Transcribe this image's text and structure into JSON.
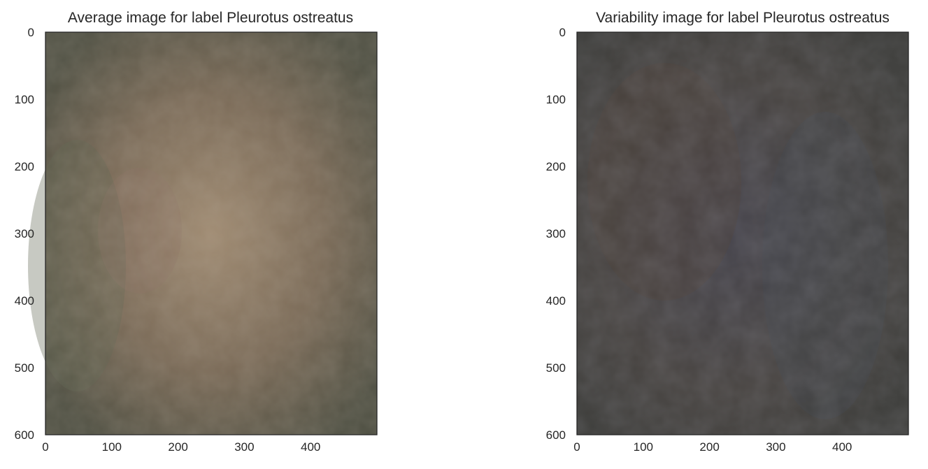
{
  "chart_data": [
    {
      "type": "heatmap",
      "title": "Average image for label Pleurotus ostreatus",
      "xlim": [
        0,
        500
      ],
      "ylim": [
        600,
        0
      ],
      "x_ticks": [
        0,
        100,
        200,
        300,
        400
      ],
      "y_ticks": [
        0,
        100,
        200,
        300,
        400,
        500,
        600
      ],
      "grid": false,
      "colors": {
        "center": "#a08b72",
        "mid": "#7a6a57",
        "edge": "#4e4f42",
        "accent_green": "#5e6350",
        "accent_rose": "#8a6e64"
      }
    },
    {
      "type": "heatmap",
      "title": "Variability image for label Pleurotus ostreatus",
      "xlim": [
        0,
        500
      ],
      "ylim": [
        600,
        0
      ],
      "x_ticks": [
        0,
        100,
        200,
        300,
        400
      ],
      "y_ticks": [
        0,
        100,
        200,
        300,
        400,
        500,
        600
      ],
      "grid": false,
      "colors": {
        "center": "#44424a",
        "mid": "#46423f",
        "edge": "#3b3b38",
        "accent_brown": "#4d3f37",
        "accent_blue": "#3e4650"
      }
    }
  ]
}
